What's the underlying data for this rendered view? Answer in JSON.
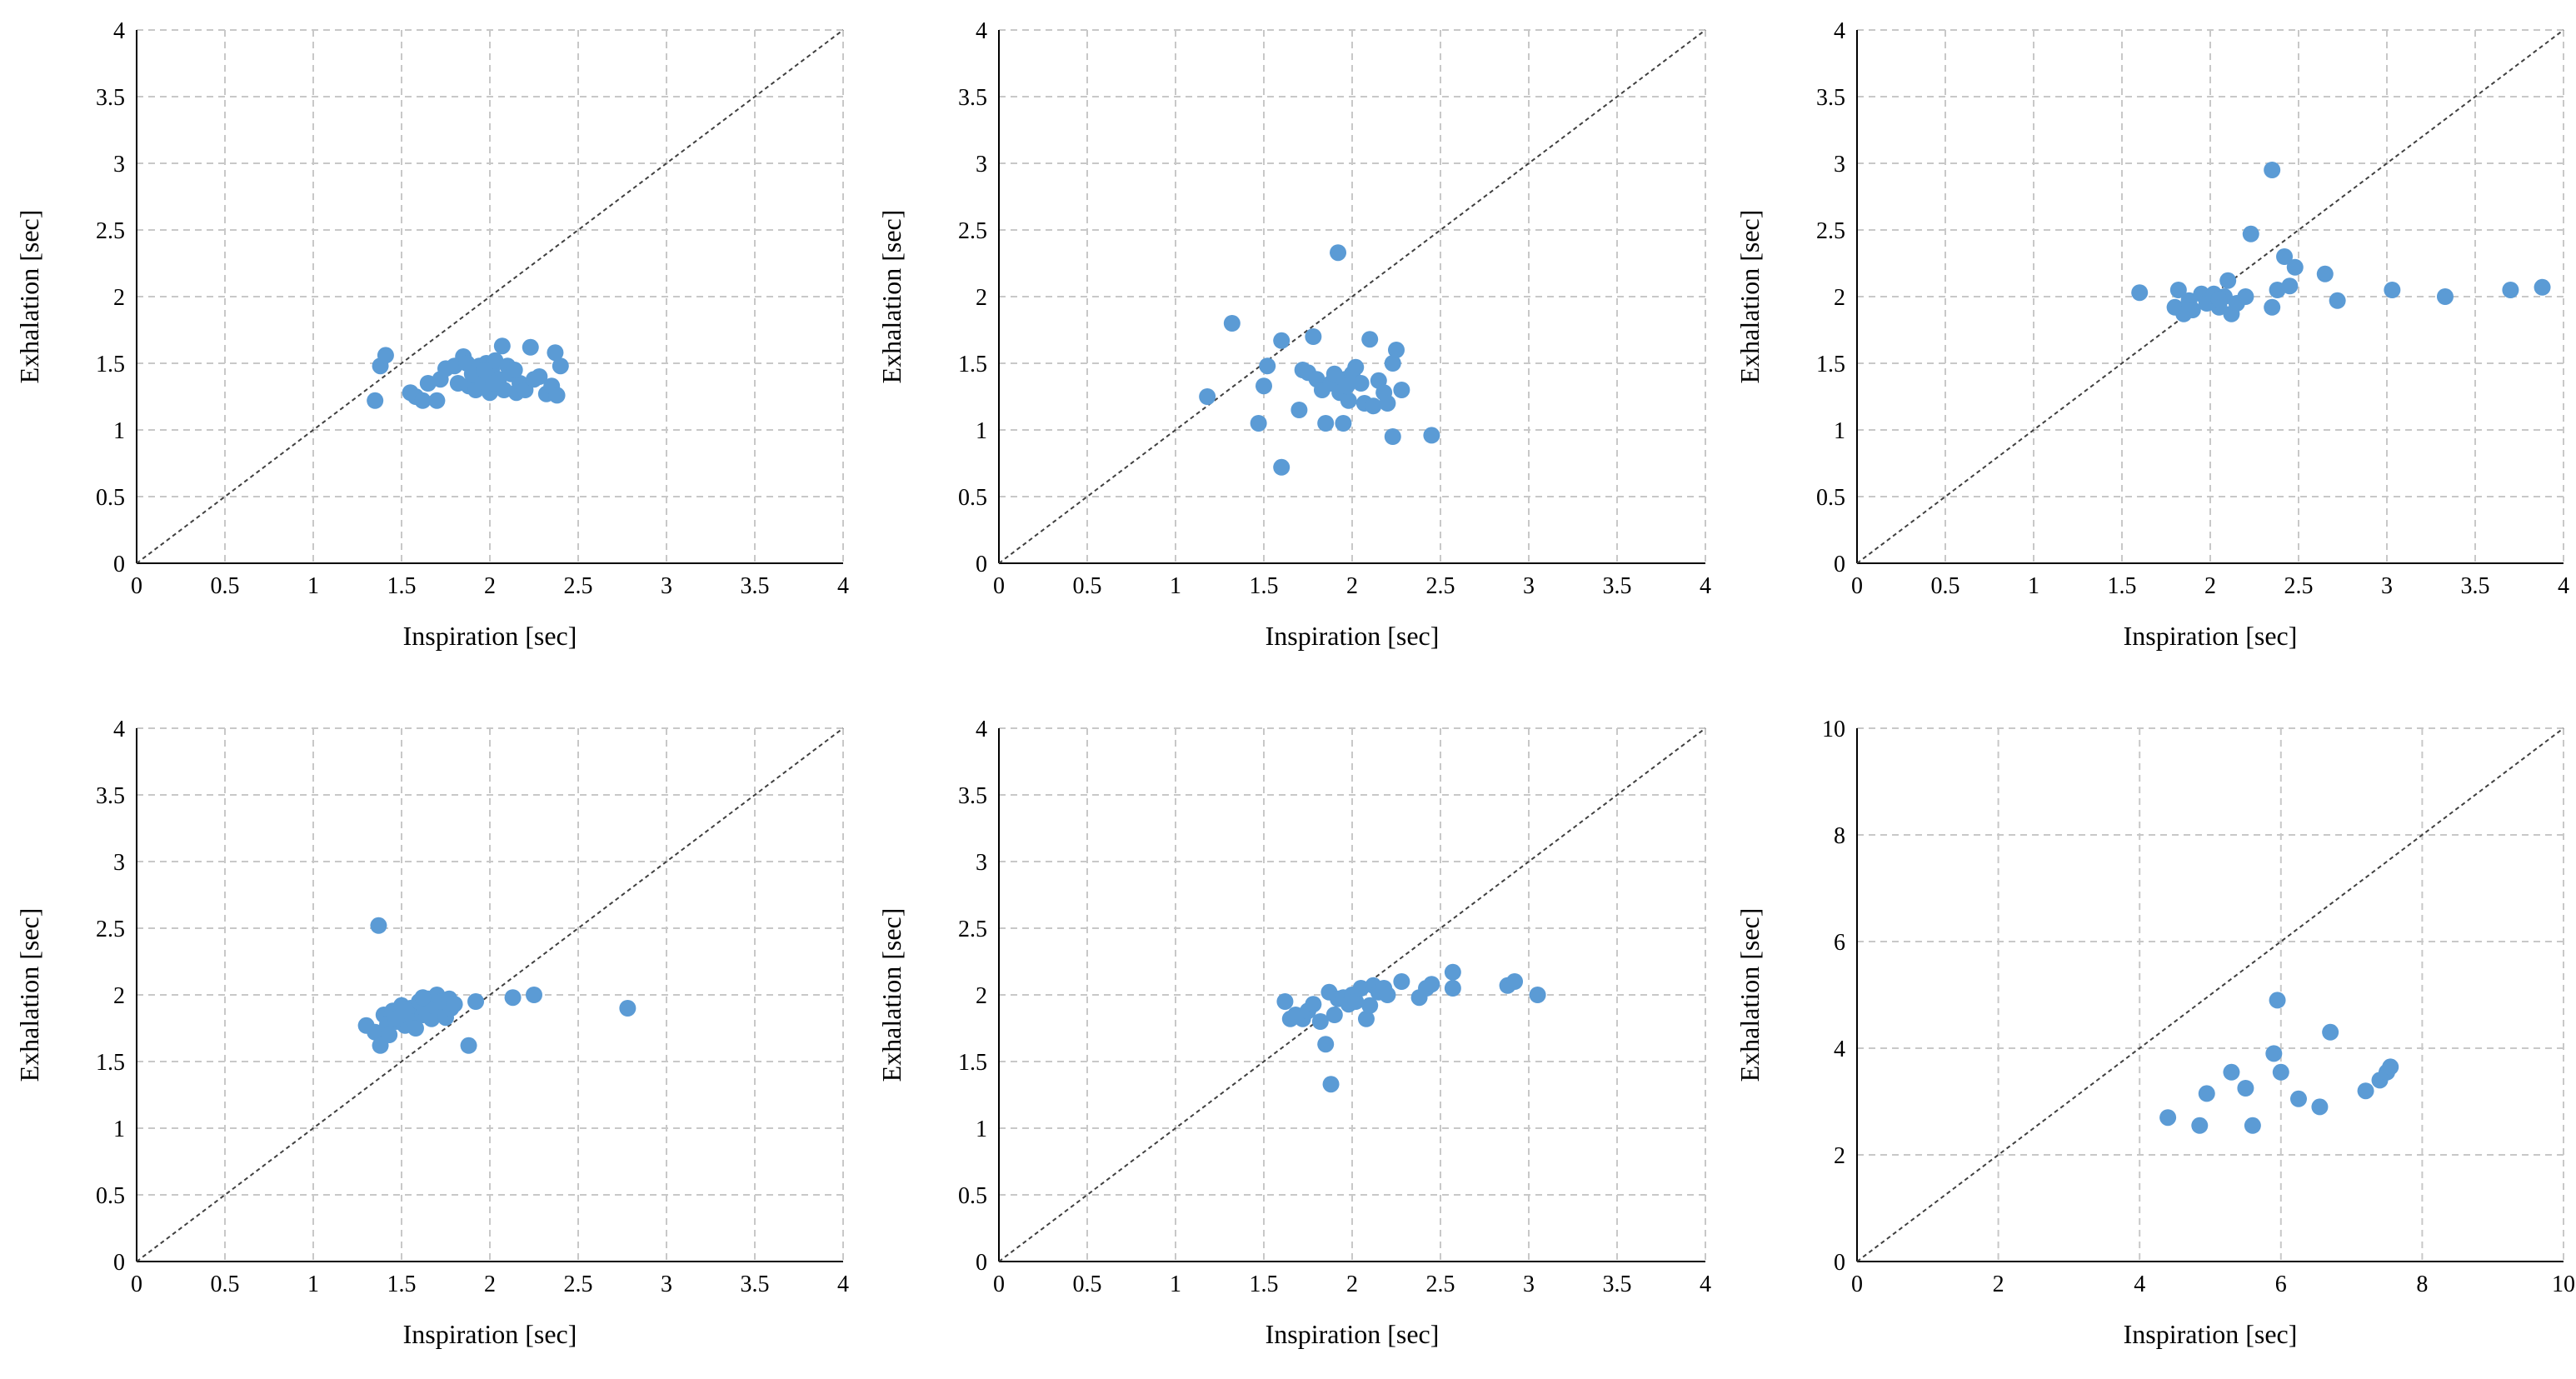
{
  "chart_data": [
    {
      "type": "scatter",
      "xlabel": "Inspiration [sec]",
      "ylabel": "Exhalation [sec]",
      "xlim": [
        0,
        4
      ],
      "ylim": [
        0,
        4
      ],
      "xticks": [
        0,
        0.5,
        1,
        1.5,
        2,
        2.5,
        3,
        3.5,
        4
      ],
      "yticks": [
        0,
        0.5,
        1,
        1.5,
        2,
        2.5,
        3,
        3.5,
        4
      ],
      "grid": true,
      "reference_line": "y = x",
      "series": [
        {
          "name": "points",
          "color": "#5b9bd5",
          "points": [
            [
              1.35,
              1.22
            ],
            [
              1.38,
              1.48
            ],
            [
              1.41,
              1.56
            ],
            [
              1.55,
              1.28
            ],
            [
              1.58,
              1.25
            ],
            [
              1.62,
              1.22
            ],
            [
              1.65,
              1.35
            ],
            [
              1.7,
              1.22
            ],
            [
              1.72,
              1.38
            ],
            [
              1.75,
              1.46
            ],
            [
              1.8,
              1.48
            ],
            [
              1.82,
              1.35
            ],
            [
              1.85,
              1.55
            ],
            [
              1.87,
              1.5
            ],
            [
              1.88,
              1.33
            ],
            [
              1.9,
              1.42
            ],
            [
              1.92,
              1.3
            ],
            [
              1.94,
              1.48
            ],
            [
              1.96,
              1.35
            ],
            [
              1.98,
              1.5
            ],
            [
              2.0,
              1.28
            ],
            [
              2.01,
              1.45
            ],
            [
              2.03,
              1.52
            ],
            [
              2.05,
              1.38
            ],
            [
              2.07,
              1.63
            ],
            [
              2.08,
              1.3
            ],
            [
              2.1,
              1.48
            ],
            [
              2.12,
              1.42
            ],
            [
              2.15,
              1.28
            ],
            [
              2.17,
              1.35
            ],
            [
              2.2,
              1.3
            ],
            [
              2.23,
              1.62
            ],
            [
              2.25,
              1.38
            ],
            [
              2.28,
              1.4
            ],
            [
              2.32,
              1.27
            ],
            [
              2.35,
              1.33
            ],
            [
              2.37,
              1.58
            ],
            [
              2.38,
              1.26
            ],
            [
              2.4,
              1.48
            ],
            [
              1.97,
              1.45
            ],
            [
              2.02,
              1.35
            ],
            [
              2.14,
              1.45
            ]
          ]
        }
      ]
    },
    {
      "type": "scatter",
      "xlabel": "Inspiration [sec]",
      "ylabel": "Exhalation [sec]",
      "xlim": [
        0,
        4
      ],
      "ylim": [
        0,
        4
      ],
      "xticks": [
        0,
        0.5,
        1,
        1.5,
        2,
        2.5,
        3,
        3.5,
        4
      ],
      "yticks": [
        0,
        0.5,
        1,
        1.5,
        2,
        2.5,
        3,
        3.5,
        4
      ],
      "grid": true,
      "reference_line": "y = x",
      "series": [
        {
          "name": "points",
          "color": "#5b9bd5",
          "points": [
            [
              1.18,
              1.25
            ],
            [
              1.32,
              1.8
            ],
            [
              1.47,
              1.05
            ],
            [
              1.5,
              1.33
            ],
            [
              1.52,
              1.48
            ],
            [
              1.6,
              0.72
            ],
            [
              1.6,
              1.67
            ],
            [
              1.7,
              1.15
            ],
            [
              1.72,
              1.45
            ],
            [
              1.75,
              1.43
            ],
            [
              1.78,
              1.7
            ],
            [
              1.8,
              1.38
            ],
            [
              1.83,
              1.3
            ],
            [
              1.85,
              1.05
            ],
            [
              1.88,
              1.35
            ],
            [
              1.9,
              1.42
            ],
            [
              1.92,
              2.33
            ],
            [
              1.93,
              1.28
            ],
            [
              1.95,
              1.05
            ],
            [
              1.96,
              1.38
            ],
            [
              1.98,
              1.22
            ],
            [
              2.0,
              1.42
            ],
            [
              2.02,
              1.47
            ],
            [
              2.05,
              1.35
            ],
            [
              2.07,
              1.2
            ],
            [
              2.1,
              1.68
            ],
            [
              2.12,
              1.18
            ],
            [
              2.15,
              1.37
            ],
            [
              2.18,
              1.28
            ],
            [
              2.2,
              1.2
            ],
            [
              2.23,
              1.5
            ],
            [
              2.25,
              1.6
            ],
            [
              2.23,
              0.95
            ],
            [
              2.28,
              1.3
            ],
            [
              2.45,
              0.96
            ],
            [
              1.97,
              1.33
            ]
          ]
        }
      ]
    },
    {
      "type": "scatter",
      "xlabel": "Inspiration [sec]",
      "ylabel": "Exhalation [sec]",
      "xlim": [
        0,
        4
      ],
      "ylim": [
        0,
        4
      ],
      "xticks": [
        0,
        0.5,
        1,
        1.5,
        2,
        2.5,
        3,
        3.5,
        4
      ],
      "yticks": [
        0,
        0.5,
        1,
        1.5,
        2,
        2.5,
        3,
        3.5,
        4
      ],
      "grid": true,
      "reference_line": "y = x",
      "series": [
        {
          "name": "points",
          "color": "#5b9bd5",
          "points": [
            [
              1.6,
              2.03
            ],
            [
              1.8,
              1.92
            ],
            [
              1.82,
              2.05
            ],
            [
              1.85,
              1.87
            ],
            [
              1.88,
              1.97
            ],
            [
              1.9,
              1.9
            ],
            [
              1.95,
              2.02
            ],
            [
              1.98,
              1.95
            ],
            [
              2.02,
              2.02
            ],
            [
              2.05,
              1.92
            ],
            [
              2.08,
              2.0
            ],
            [
              2.1,
              2.12
            ],
            [
              2.12,
              1.87
            ],
            [
              2.15,
              1.95
            ],
            [
              2.2,
              2.0
            ],
            [
              2.23,
              2.47
            ],
            [
              2.35,
              2.95
            ],
            [
              2.35,
              1.92
            ],
            [
              2.38,
              2.05
            ],
            [
              2.42,
              2.3
            ],
            [
              2.45,
              2.08
            ],
            [
              2.48,
              2.22
            ],
            [
              2.65,
              2.17
            ],
            [
              2.72,
              1.97
            ],
            [
              3.03,
              2.05
            ],
            [
              3.33,
              2.0
            ],
            [
              3.7,
              2.05
            ],
            [
              3.88,
              2.07
            ],
            [
              2.05,
              1.98
            ]
          ]
        }
      ]
    },
    {
      "type": "scatter",
      "xlabel": "Inspiration [sec]",
      "ylabel": "Exhalation [sec]",
      "xlim": [
        0,
        4
      ],
      "ylim": [
        0,
        4
      ],
      "xticks": [
        0,
        0.5,
        1,
        1.5,
        2,
        2.5,
        3,
        3.5,
        4
      ],
      "yticks": [
        0,
        0.5,
        1,
        1.5,
        2,
        2.5,
        3,
        3.5,
        4
      ],
      "grid": true,
      "reference_line": "y = x",
      "series": [
        {
          "name": "points",
          "color": "#5b9bd5",
          "points": [
            [
              1.3,
              1.77
            ],
            [
              1.35,
              1.72
            ],
            [
              1.37,
              2.52
            ],
            [
              1.38,
              1.62
            ],
            [
              1.4,
              1.85
            ],
            [
              1.42,
              1.78
            ],
            [
              1.43,
              1.7
            ],
            [
              1.45,
              1.88
            ],
            [
              1.47,
              1.8
            ],
            [
              1.5,
              1.92
            ],
            [
              1.52,
              1.77
            ],
            [
              1.53,
              1.85
            ],
            [
              1.55,
              1.9
            ],
            [
              1.57,
              1.8
            ],
            [
              1.58,
              1.75
            ],
            [
              1.6,
              1.95
            ],
            [
              1.62,
              1.85
            ],
            [
              1.63,
              1.9
            ],
            [
              1.65,
              1.97
            ],
            [
              1.67,
              1.82
            ],
            [
              1.68,
              1.92
            ],
            [
              1.7,
              2.0
            ],
            [
              1.72,
              1.88
            ],
            [
              1.73,
              1.95
            ],
            [
              1.75,
              1.83
            ],
            [
              1.77,
              1.97
            ],
            [
              1.78,
              1.9
            ],
            [
              1.8,
              1.93
            ],
            [
              1.88,
              1.62
            ],
            [
              1.92,
              1.95
            ],
            [
              2.13,
              1.98
            ],
            [
              2.25,
              2.0
            ],
            [
              2.78,
              1.9
            ],
            [
              1.62,
              1.98
            ],
            [
              1.47,
              1.82
            ]
          ]
        }
      ]
    },
    {
      "type": "scatter",
      "xlabel": "Inspiration [sec]",
      "ylabel": "Exhalation [sec]",
      "xlim": [
        0,
        4
      ],
      "ylim": [
        0,
        4
      ],
      "xticks": [
        0,
        0.5,
        1,
        1.5,
        2,
        2.5,
        3,
        3.5,
        4
      ],
      "yticks": [
        0,
        0.5,
        1,
        1.5,
        2,
        2.5,
        3,
        3.5,
        4
      ],
      "grid": true,
      "reference_line": "y = x",
      "series": [
        {
          "name": "points",
          "color": "#5b9bd5",
          "points": [
            [
              1.62,
              1.95
            ],
            [
              1.65,
              1.82
            ],
            [
              1.68,
              1.85
            ],
            [
              1.72,
              1.82
            ],
            [
              1.75,
              1.88
            ],
            [
              1.78,
              1.93
            ],
            [
              1.82,
              1.8
            ],
            [
              1.85,
              1.63
            ],
            [
              1.87,
              2.02
            ],
            [
              1.88,
              1.33
            ],
            [
              1.9,
              1.85
            ],
            [
              1.92,
              1.97
            ],
            [
              1.95,
              1.98
            ],
            [
              1.98,
              1.93
            ],
            [
              2.0,
              2.0
            ],
            [
              2.02,
              1.95
            ],
            [
              2.05,
              2.05
            ],
            [
              2.08,
              1.82
            ],
            [
              2.1,
              1.92
            ],
            [
              2.12,
              2.07
            ],
            [
              2.15,
              2.02
            ],
            [
              2.18,
              2.05
            ],
            [
              2.2,
              2.0
            ],
            [
              2.28,
              2.1
            ],
            [
              2.38,
              1.98
            ],
            [
              2.42,
              2.05
            ],
            [
              2.45,
              2.08
            ],
            [
              2.57,
              2.05
            ],
            [
              2.57,
              2.17
            ],
            [
              2.88,
              2.07
            ],
            [
              2.92,
              2.1
            ],
            [
              3.05,
              2.0
            ]
          ]
        }
      ]
    },
    {
      "type": "scatter",
      "xlabel": "Inspiration [sec]",
      "ylabel": "Exhalation [sec]",
      "xlim": [
        0,
        10
      ],
      "ylim": [
        0,
        10
      ],
      "xticks": [
        0,
        2,
        4,
        6,
        8,
        10
      ],
      "yticks": [
        0,
        2,
        4,
        6,
        8,
        10
      ],
      "grid": true,
      "reference_line": "y = x",
      "series": [
        {
          "name": "points",
          "color": "#5b9bd5",
          "points": [
            [
              4.4,
              2.7
            ],
            [
              4.85,
              2.55
            ],
            [
              4.95,
              3.15
            ],
            [
              5.3,
              3.55
            ],
            [
              5.5,
              3.25
            ],
            [
              5.6,
              2.55
            ],
            [
              5.9,
              3.9
            ],
            [
              5.95,
              4.9
            ],
            [
              6.0,
              3.55
            ],
            [
              6.25,
              3.05
            ],
            [
              6.55,
              2.9
            ],
            [
              6.7,
              4.3
            ],
            [
              7.2,
              3.2
            ],
            [
              7.4,
              3.4
            ],
            [
              7.5,
              3.55
            ],
            [
              7.55,
              3.65
            ]
          ]
        }
      ]
    }
  ]
}
